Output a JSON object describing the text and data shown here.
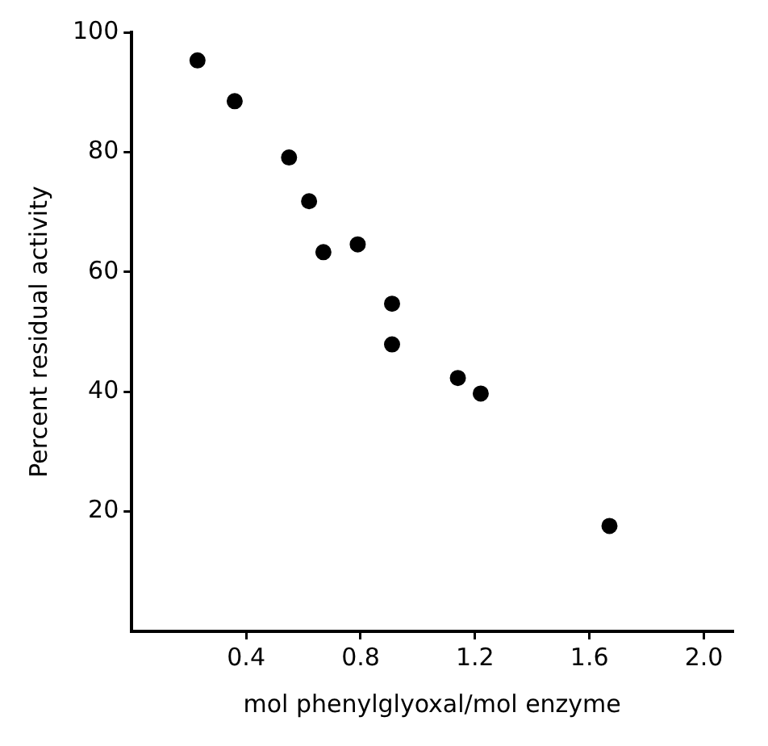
{
  "chart_data": {
    "type": "scatter",
    "xlabel": "mol phenylglyoxal/mol enzyme",
    "ylabel": "Percent residual activity",
    "x": [
      0.23,
      0.36,
      0.55,
      0.62,
      0.67,
      0.79,
      0.91,
      0.91,
      1.14,
      1.22,
      1.67
    ],
    "values": [
      95.3,
      88.5,
      79.1,
      71.8,
      63.3,
      64.6,
      54.7,
      47.9,
      42.3,
      39.7,
      17.6
    ],
    "color": "#000000",
    "marker": "circle",
    "grid": false,
    "legend": false,
    "xlim": [
      0,
      2.1
    ],
    "xticks": [
      0.4,
      0.8,
      1.2,
      1.6,
      {
        "value": 2,
        "label": "2.0"
      }
    ],
    "ylim": [
      0,
      100
    ],
    "yticks": [
      20,
      40,
      60,
      80,
      100
    ]
  }
}
